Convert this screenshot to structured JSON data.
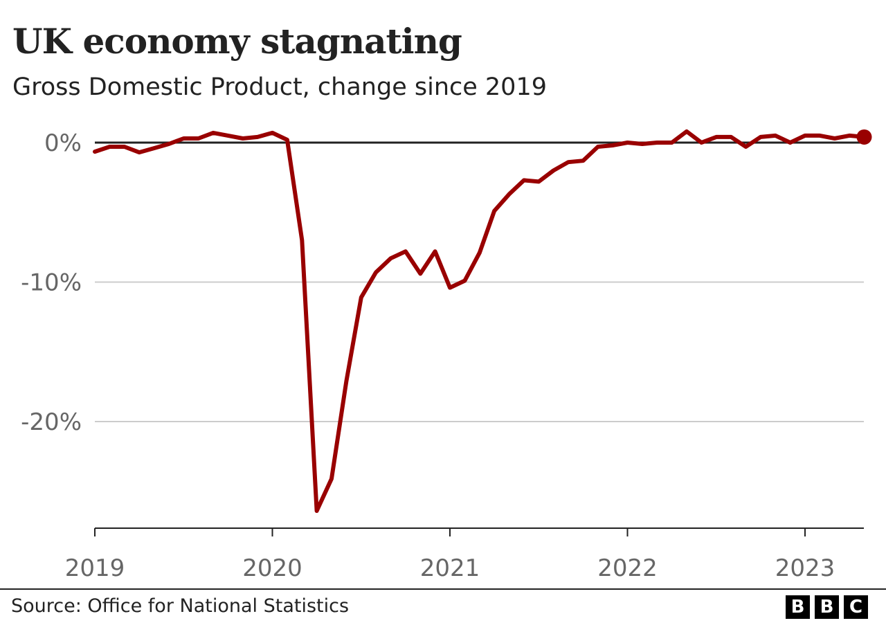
{
  "chart_data": {
    "type": "line",
    "title": "UK economy stagnating",
    "subtitle": "Gross Domestic Product, change since 2019",
    "xlabel": "",
    "ylabel": "",
    "ylim": [
      -27,
      1.5
    ],
    "yticks": [
      0,
      -10,
      -20
    ],
    "ytick_labels": [
      "0%",
      "-10%",
      "-20%"
    ],
    "xticks": [
      "2019",
      "2020",
      "2021",
      "2022",
      "2023"
    ],
    "grid": true,
    "series_color": "#990000",
    "end_marker": true,
    "x": [
      "2019-01",
      "2019-02",
      "2019-03",
      "2019-04",
      "2019-05",
      "2019-06",
      "2019-07",
      "2019-08",
      "2019-09",
      "2019-10",
      "2019-11",
      "2019-12",
      "2020-01",
      "2020-02",
      "2020-03",
      "2020-04",
      "2020-05",
      "2020-06",
      "2020-07",
      "2020-08",
      "2020-09",
      "2020-10",
      "2020-11",
      "2020-12",
      "2021-01",
      "2021-02",
      "2021-03",
      "2021-04",
      "2021-05",
      "2021-06",
      "2021-07",
      "2021-08",
      "2021-09",
      "2021-10",
      "2021-11",
      "2021-12",
      "2022-01",
      "2022-02",
      "2022-03",
      "2022-04",
      "2022-05",
      "2022-06",
      "2022-07",
      "2022-08",
      "2022-09",
      "2022-10",
      "2022-11",
      "2022-12",
      "2023-01",
      "2023-02",
      "2023-03",
      "2023-04",
      "2023-05"
    ],
    "values": [
      -0.65,
      -0.3,
      -0.3,
      -0.7,
      -0.4,
      -0.1,
      0.3,
      0.3,
      0.7,
      0.5,
      0.3,
      0.4,
      0.7,
      0.2,
      -7.0,
      -26.4,
      -24.1,
      -17.1,
      -11.1,
      -9.3,
      -8.3,
      -7.8,
      -9.4,
      -7.8,
      -10.4,
      -9.9,
      -7.9,
      -4.9,
      -3.7,
      -2.7,
      -2.8,
      -2.0,
      -1.4,
      -1.3,
      -0.3,
      -0.2,
      0.0,
      -0.1,
      0.0,
      0.0,
      0.8,
      0.0,
      0.4,
      0.4,
      -0.3,
      0.4,
      0.5,
      0.0,
      0.5,
      0.5,
      0.3,
      0.5,
      0.4
    ]
  },
  "footer": {
    "source": "Source: Office for National Statistics",
    "logo": [
      "B",
      "B",
      "C"
    ]
  }
}
